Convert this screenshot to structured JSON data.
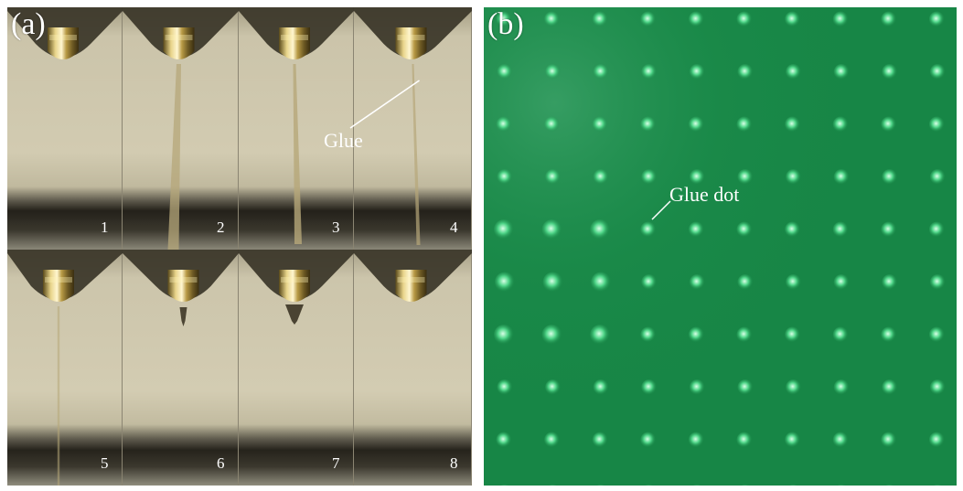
{
  "panel_a": {
    "letter": "(a)",
    "frames": [
      {
        "label": "1"
      },
      {
        "label": "2"
      },
      {
        "label": "3"
      },
      {
        "label": "4"
      },
      {
        "label": "5"
      },
      {
        "label": "6"
      },
      {
        "label": "7"
      },
      {
        "label": "8"
      }
    ],
    "annotation": "Glue"
  },
  "panel_b": {
    "letter": "(b)",
    "annotation": "Glue dot"
  },
  "colors": {
    "substrate_green": "#1a8a49",
    "dot_green": "#2fc06a",
    "background_beige": "#d0c9af"
  }
}
